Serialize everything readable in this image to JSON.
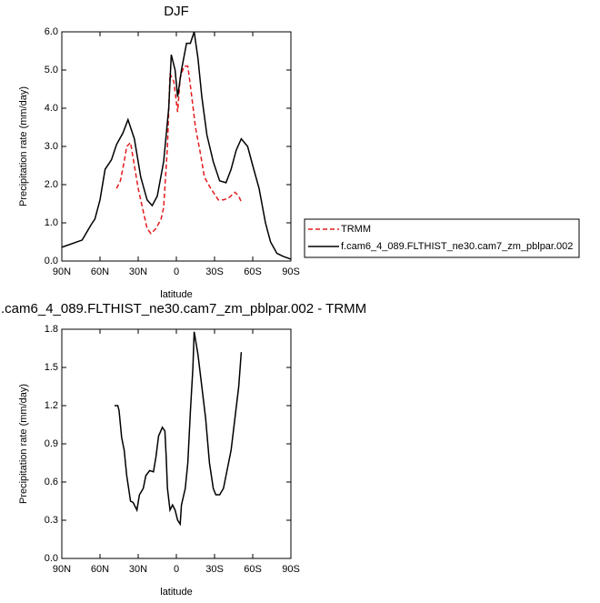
{
  "chart_data": [
    {
      "type": "line",
      "title": "DJF",
      "xlabel": "latitude",
      "ylabel": "Precipitation rate (mm/day)",
      "xlim": [
        90,
        -90
      ],
      "ylim": [
        0,
        6
      ],
      "xticks": [
        {
          "value": 90,
          "label": "90N"
        },
        {
          "value": 60,
          "label": "60N"
        },
        {
          "value": 30,
          "label": "30N"
        },
        0,
        {
          "value": -30,
          "label": "30S"
        },
        {
          "value": -60,
          "label": "60S"
        },
        {
          "value": -90,
          "label": "90S"
        }
      ],
      "yticks": [
        {
          "value": 0,
          "label": "0.0"
        },
        {
          "value": 1,
          "label": "1.0"
        },
        {
          "value": 2,
          "label": "2.0"
        },
        {
          "value": 3,
          "label": "3.0"
        },
        {
          "value": 4,
          "label": "4.0"
        },
        {
          "value": 5,
          "label": "5.0"
        },
        {
          "value": 6,
          "label": "6.0"
        }
      ],
      "legend": "right",
      "series": [
        {
          "name": "TRMM",
          "color": "#e41a1c",
          "line_style": "dashed",
          "x": [
            47,
            44,
            41,
            39,
            36,
            33,
            30,
            26,
            23,
            20,
            16,
            12,
            10,
            7,
            5,
            2,
            -1,
            -3,
            -6,
            -9,
            -11,
            -15,
            -19,
            -22,
            -27,
            -33,
            -37,
            -41,
            -46,
            -49,
            -51
          ],
          "values": [
            1.9,
            2.1,
            2.6,
            3.0,
            3.1,
            2.5,
            1.9,
            1.3,
            0.85,
            0.72,
            0.85,
            1.1,
            1.4,
            3.0,
            4.9,
            4.7,
            3.9,
            4.8,
            5.1,
            5.1,
            4.6,
            3.5,
            2.8,
            2.2,
            1.9,
            1.6,
            1.6,
            1.65,
            1.8,
            1.7,
            1.55
          ]
        },
        {
          "name": "f.cam6_4_089.FLTHIST_ne30.cam7_zm_pblpar.002",
          "color": "#000000",
          "line_style": "solid",
          "x": [
            90,
            74,
            67,
            64,
            60,
            56,
            51,
            47,
            42,
            38,
            33,
            28,
            23,
            19,
            15,
            10,
            6,
            4,
            1,
            -1,
            -4,
            -8,
            -11,
            -14,
            -17,
            -20,
            -24,
            -29,
            -34,
            -39,
            -43,
            -47,
            -51,
            -56,
            -60,
            -65,
            -70,
            -74,
            -79,
            -84,
            -90
          ],
          "values": [
            0.36,
            0.55,
            0.95,
            1.1,
            1.6,
            2.4,
            2.65,
            3.05,
            3.35,
            3.7,
            3.2,
            2.2,
            1.6,
            1.45,
            1.7,
            2.6,
            4.0,
            5.4,
            5.0,
            4.3,
            5.0,
            5.7,
            5.7,
            6.0,
            5.3,
            4.3,
            3.3,
            2.6,
            2.1,
            2.05,
            2.4,
            2.9,
            3.2,
            3.0,
            2.5,
            1.9,
            1.0,
            0.5,
            0.2,
            0.12,
            0.05
          ]
        }
      ]
    },
    {
      "type": "line",
      "title": ".cam6_4_089.FLTHIST_ne30.cam7_zm_pblpar.002 - TRMM",
      "xlabel": "latitude",
      "ylabel": "Precipitation rate (mm/day)",
      "xlim": [
        90,
        -90
      ],
      "ylim": [
        0,
        1.8
      ],
      "xticks": [
        {
          "value": 90,
          "label": "90N"
        },
        {
          "value": 60,
          "label": "60N"
        },
        {
          "value": 30,
          "label": "30N"
        },
        0,
        {
          "value": -30,
          "label": "30S"
        },
        {
          "value": -60,
          "label": "60S"
        },
        {
          "value": -90,
          "label": "90S"
        }
      ],
      "yticks": [
        {
          "value": 0,
          "label": "0.0"
        },
        0.3,
        0.6,
        0.9,
        1.2,
        1.5,
        1.8
      ],
      "series": [
        {
          "color": "#000000",
          "line_style": "solid",
          "x": [
            48.6,
            46,
            45,
            43,
            41,
            39,
            36,
            34,
            31,
            29,
            26,
            24,
            21,
            18,
            16,
            14,
            11,
            9,
            8,
            7,
            5,
            3,
            1,
            -1,
            -3,
            -4,
            -7,
            -9,
            -11,
            -13,
            -14,
            -17,
            -20,
            -23,
            -26,
            -29,
            -31,
            -34,
            -37,
            -40,
            -43,
            -46,
            -49,
            -51
          ],
          "values": [
            1.2,
            1.2,
            1.16,
            0.95,
            0.85,
            0.65,
            0.45,
            0.44,
            0.38,
            0.5,
            0.55,
            0.65,
            0.69,
            0.68,
            0.8,
            0.96,
            1.03,
            1.0,
            0.8,
            0.55,
            0.38,
            0.42,
            0.38,
            0.3,
            0.27,
            0.42,
            0.55,
            0.75,
            1.15,
            1.5,
            1.78,
            1.6,
            1.35,
            1.1,
            0.75,
            0.55,
            0.5,
            0.5,
            0.55,
            0.7,
            0.85,
            1.1,
            1.35,
            1.62
          ]
        }
      ]
    }
  ]
}
